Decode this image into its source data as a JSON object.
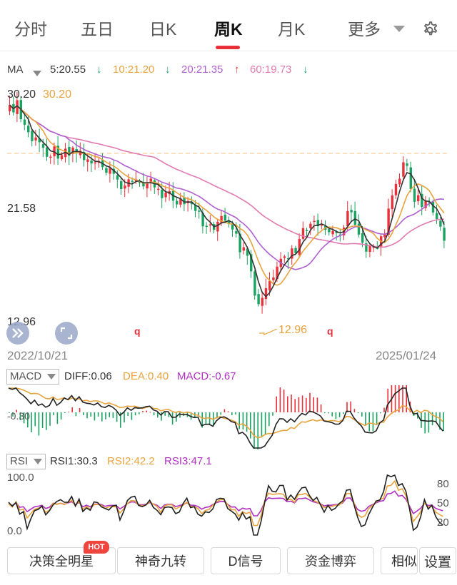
{
  "tabs": [
    {
      "label": "分时",
      "active": false
    },
    {
      "label": "五日",
      "active": false
    },
    {
      "label": "日K",
      "active": false
    },
    {
      "label": "周K",
      "active": true
    },
    {
      "label": "月K",
      "active": false
    },
    {
      "label": "更多",
      "active": false
    }
  ],
  "ma_bar": {
    "selector": "MA",
    "ma5": "5:20.55",
    "ma10": "10:21.20",
    "ma20": "20:21.35",
    "ma60": "60:19.73",
    "ma5_arrow": "↓",
    "ma10_arrow": "↓",
    "ma20_arrow": "↑",
    "ma60_arrow": "↓"
  },
  "colors": {
    "up": "#e8313a",
    "down": "#1aa260",
    "ma5": "#333333",
    "ma10": "#e8a33d",
    "ma20": "#b060d0",
    "ma60": "#e07ab0",
    "dashed": "#f0c080"
  },
  "price_chart": {
    "y_top_label": "30.20",
    "y_top_marker": "30.20",
    "y_mid_label": "21.58",
    "y_bottom_label": "12.96",
    "low_marker": "12.96",
    "q_marker_1": "q",
    "q_marker_2": "q",
    "start_date": "2022/10/21",
    "end_date": "2025/01/24",
    "ylim": [
      12.96,
      30.2
    ]
  },
  "macd": {
    "selector": "MACD",
    "diff": "DIFF:0.06",
    "dea": "DEA:0.40",
    "macd": "MACD:-0.67",
    "axis_label": "-0.30"
  },
  "rsi": {
    "selector": "RSI",
    "rsi1": "RSI1:30.3",
    "rsi2": "RSI2:42.2",
    "rsi3": "RSI3:47.1",
    "top_label": "100.0",
    "bottom_label": "0.0",
    "right_80": "80",
    "right_50": "50",
    "right_20": "20"
  },
  "bottom_buttons": [
    {
      "label": "决策全明星"
    },
    {
      "label": "神奇九转"
    },
    {
      "label": "D信号"
    },
    {
      "label": "资金博弈"
    },
    {
      "label": "相似K线"
    },
    {
      "label": "设置"
    }
  ],
  "hot_badge": "HOT"
}
